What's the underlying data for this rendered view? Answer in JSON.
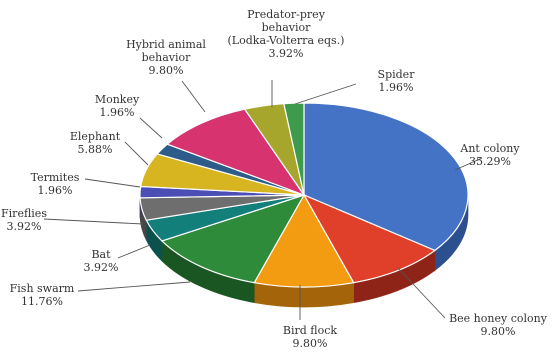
{
  "chart_data": {
    "type": "pie",
    "three_d": true,
    "slices": [
      {
        "label": "Ant colony",
        "value": 35.29,
        "value_label": "35.29%",
        "color": "#4472C4",
        "side": "#2C4F8F"
      },
      {
        "label": "Bee honey colony",
        "value": 9.8,
        "value_label": "9.80%",
        "color": "#E0402A",
        "side": "#8E2418"
      },
      {
        "label": "Bird flock",
        "value": 9.8,
        "value_label": "9.80%",
        "color": "#F39C12",
        "side": "#A4650A"
      },
      {
        "label": "Fish swarm",
        "value": 11.76,
        "value_label": "11.76%",
        "color": "#2E8B3A",
        "side": "#1A5622"
      },
      {
        "label": "Bat",
        "value": 3.92,
        "value_label": "3.92%",
        "color": "#127F7A",
        "side": "#0B524F"
      },
      {
        "label": "Fireflies",
        "value": 3.92,
        "value_label": "3.92%",
        "color": "#6E6E6E",
        "side": "#474747"
      },
      {
        "label": "Termites",
        "value": 1.96,
        "value_label": "1.96%",
        "color": "#4B4FB5",
        "side": "#2F3275"
      },
      {
        "label": "Elephant",
        "value": 5.88,
        "value_label": "5.88%",
        "color": "#D7B521",
        "side": "#8C7615"
      },
      {
        "label": "Monkey",
        "value": 1.96,
        "value_label": "1.96%",
        "color": "#2D5C8A",
        "side": "#1C3A58"
      },
      {
        "label": "Hybrid animal behavior",
        "value": 9.8,
        "value_label": "9.80%",
        "color": "#D6336F",
        "side": "#8C1F48"
      },
      {
        "label": "Predator-prey behavior (Lodka-Volterra eqs.)",
        "value": 3.92,
        "value_label": "3.92%",
        "color": "#A7A62C",
        "side": "#6C6B1C"
      },
      {
        "label": "Spider",
        "value": 1.96,
        "value_label": "1.96%",
        "color": "#3E9A4C",
        "side": "#276231"
      }
    ],
    "labels": [
      {
        "lines": [
          "Ant colony",
          "35.29%"
        ]
      },
      {
        "lines": [
          "Bee honey colony",
          "9.80%"
        ]
      },
      {
        "lines": [
          "Bird flock",
          "9.80%"
        ]
      },
      {
        "lines": [
          "Fish swarm",
          "11.76%"
        ]
      },
      {
        "lines": [
          "Bat",
          "3.92%"
        ]
      },
      {
        "lines": [
          "Fireflies",
          "3.92%"
        ]
      },
      {
        "lines": [
          "Termites",
          "1.96%"
        ]
      },
      {
        "lines": [
          "Elephant",
          "5.88%"
        ]
      },
      {
        "lines": [
          "Monkey",
          "1.96%"
        ]
      },
      {
        "lines": [
          "Hybrid animal",
          "behavior",
          "9.80%"
        ]
      },
      {
        "lines": [
          "Predator-prey",
          "behavior",
          "(Lodka-Volterra eqs.)",
          "3.92%"
        ]
      },
      {
        "lines": [
          "Spider",
          "1.96%"
        ]
      }
    ]
  }
}
